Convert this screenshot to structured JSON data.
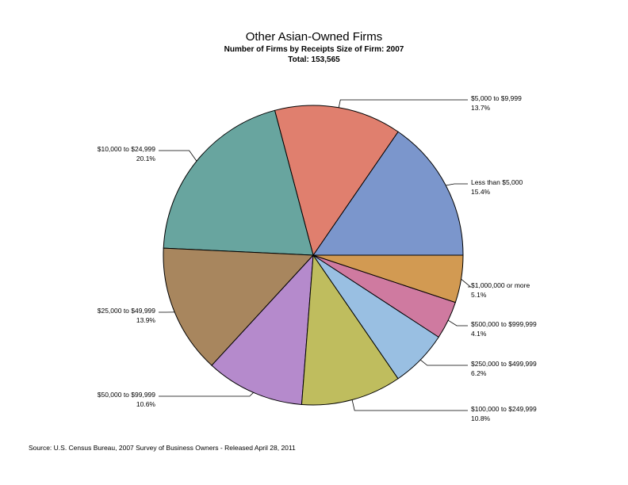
{
  "chart_data": {
    "type": "pie",
    "title": "Other Asian-Owned Firms",
    "subtitle": "Number of Firms by Receipts Size of Firm: 2007",
    "total_label": "Total: 153,565",
    "slices": [
      {
        "label": "Less than $5,000",
        "value": 15.4,
        "pct_label": "15.4%",
        "color": "#7b96cc"
      },
      {
        "label": "$5,000 to $9,999",
        "value": 13.7,
        "pct_label": "13.7%",
        "color": "#e07f6e"
      },
      {
        "label": "$10,000 to $24,999",
        "value": 20.1,
        "pct_label": "20.1%",
        "color": "#68a59f"
      },
      {
        "label": "$25,000 to $49,999",
        "value": 13.9,
        "pct_label": "13.9%",
        "color": "#a8865e"
      },
      {
        "label": "$50,000 to $99,999",
        "value": 10.6,
        "pct_label": "10.6%",
        "color": "#b58acc"
      },
      {
        "label": "$100,000 to $249,999",
        "value": 10.8,
        "pct_label": "10.8%",
        "color": "#bfbd5e"
      },
      {
        "label": "$250,000 to $499,999",
        "value": 6.2,
        "pct_label": "6.2%",
        "color": "#99bfe2"
      },
      {
        "label": "$500,000 to $999,999",
        "value": 4.1,
        "pct_label": "4.1%",
        "color": "#cf7aa0"
      },
      {
        "label": "$1,000,000 or more",
        "value": 5.1,
        "pct_label": "5.1%",
        "color": "#d29a52"
      }
    ]
  },
  "source": "Source: U.S. Census Bureau, 2007 Survey of Business Owners - Released April 28, 2011"
}
